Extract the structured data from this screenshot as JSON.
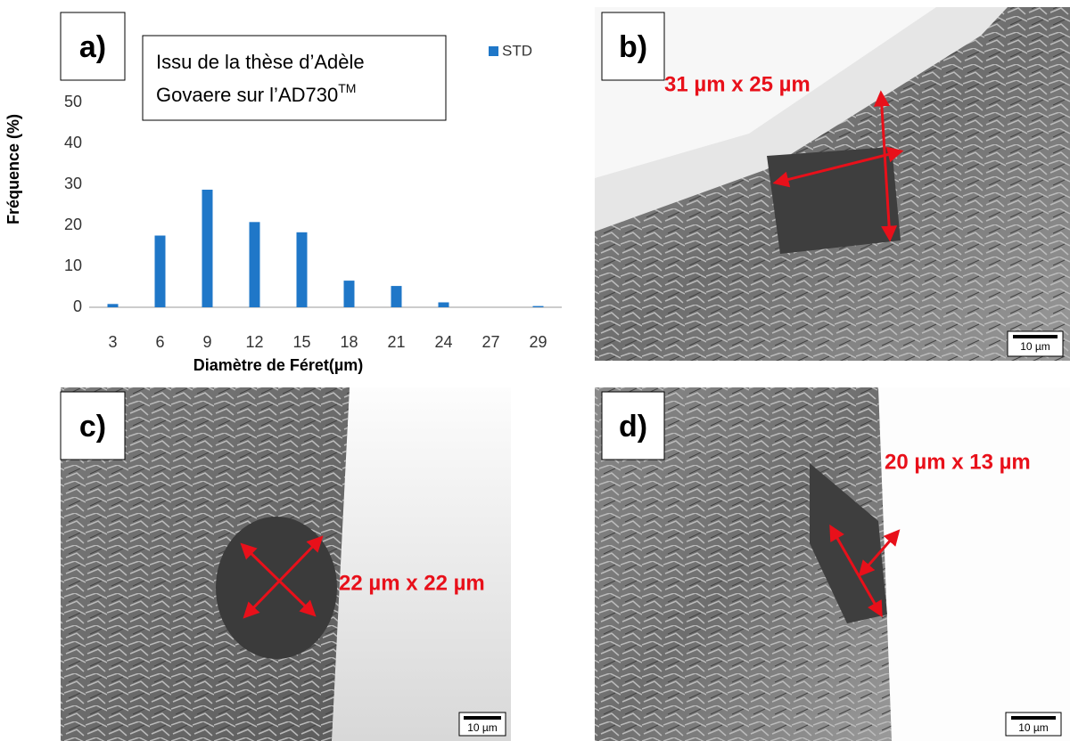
{
  "chart_data": {
    "type": "bar",
    "y_label": "Fréquence (%)",
    "x_label": "Diamètre de Féret(µm)",
    "categories": [
      "3",
      "6",
      "9",
      "12",
      "15",
      "18",
      "21",
      "24",
      "27",
      "29"
    ],
    "series": [
      {
        "name": "STD",
        "color": "#1f77c8",
        "values": [
          0.8,
          17.5,
          28.7,
          20.8,
          18.3,
          6.5,
          5.2,
          1.2,
          0,
          0.3
        ]
      }
    ],
    "ylim": [
      0,
      70
    ],
    "yticks": [
      0,
      10,
      20,
      30,
      40,
      50,
      60,
      70
    ],
    "grid": false,
    "legend": "top-right",
    "annotation": [
      "Issu de la thèse d’Adèle",
      "Govaere sur l’AD730"
    ],
    "annotation_superscript": "TM"
  },
  "panels": [
    {
      "label": "a)"
    },
    {
      "label": "b)",
      "annotation": "31 µm x 25 µm",
      "scale": "10 µm"
    },
    {
      "label": "c)",
      "annotation": "22 µm x 22 µm",
      "scale": "10 µm"
    },
    {
      "label": "d)",
      "annotation": "20 µm x 13 µm",
      "scale": "10 µm"
    }
  ]
}
